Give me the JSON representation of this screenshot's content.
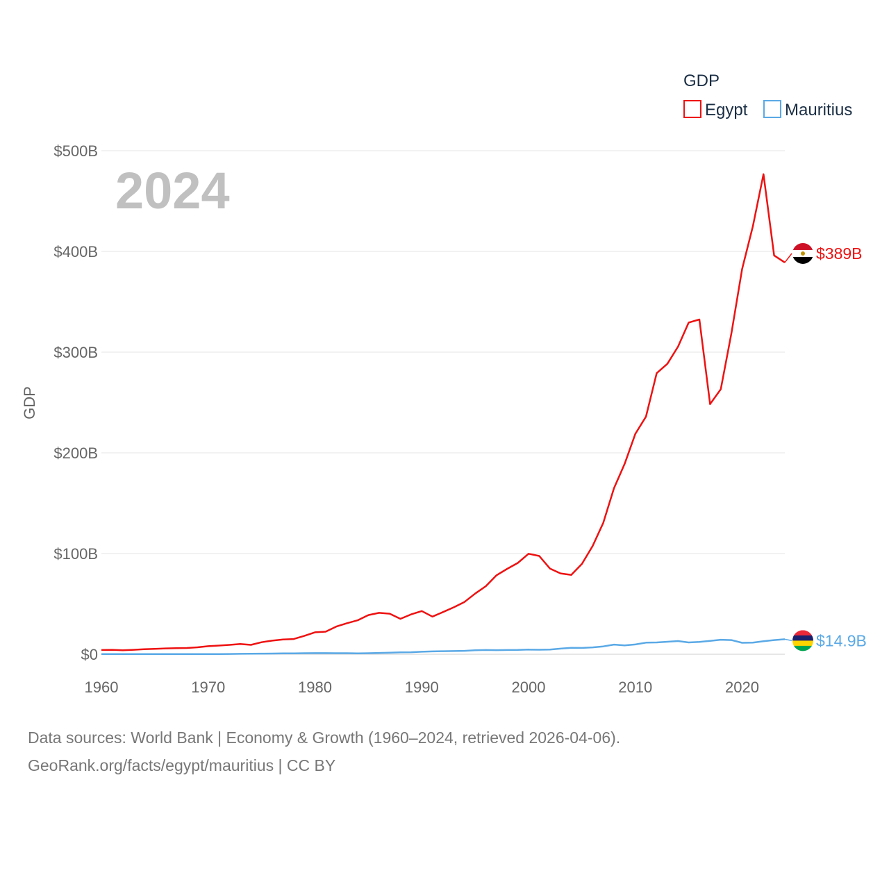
{
  "chart_data": {
    "type": "line",
    "title": "",
    "xlabel": "",
    "ylabel": "GDP",
    "legend_title": "GDP",
    "legend_position": "top-right",
    "current_year_label": "2024",
    "xlim": [
      1960,
      2024
    ],
    "ylim": [
      0,
      500
    ],
    "x_ticks": [
      1960,
      1970,
      1980,
      1990,
      2000,
      2010,
      2020
    ],
    "x_tick_labels": [
      "1960",
      "1970",
      "1980",
      "1990",
      "2000",
      "2010",
      "2020"
    ],
    "y_ticks": [
      0,
      100,
      200,
      300,
      400,
      500
    ],
    "y_tick_labels": [
      "$0",
      "$100B",
      "$200B",
      "$300B",
      "$400B",
      "$500B"
    ],
    "units": "billions of US dollars",
    "series": [
      {
        "name": "Egypt",
        "color": "#ee1111",
        "end_label": "$389B",
        "flag": "egypt-flag",
        "x": [
          1960,
          1961,
          1962,
          1963,
          1964,
          1965,
          1966,
          1967,
          1968,
          1969,
          1970,
          1971,
          1972,
          1973,
          1974,
          1975,
          1976,
          1977,
          1978,
          1979,
          1980,
          1981,
          1982,
          1983,
          1984,
          1985,
          1986,
          1987,
          1988,
          1989,
          1990,
          1991,
          1992,
          1993,
          1994,
          1995,
          1996,
          1997,
          1998,
          1999,
          2000,
          2001,
          2002,
          2003,
          2004,
          2005,
          2006,
          2007,
          2008,
          2009,
          2010,
          2011,
          2012,
          2013,
          2014,
          2015,
          2016,
          2017,
          2018,
          2019,
          2020,
          2021,
          2022,
          2023,
          2024
        ],
        "values": [
          4.2,
          4.4,
          4.0,
          4.4,
          5.0,
          5.4,
          5.8,
          6.0,
          6.2,
          6.9,
          8.0,
          8.6,
          9.3,
          10.2,
          9.3,
          11.9,
          13.5,
          14.6,
          15.1,
          18.2,
          21.8,
          22.4,
          27.5,
          30.8,
          33.7,
          38.9,
          41.1,
          40.3,
          35.2,
          39.6,
          42.9,
          37.4,
          41.9,
          46.6,
          51.9,
          60.2,
          67.6,
          78.4,
          84.8,
          90.7,
          99.8,
          97.6,
          85.1,
          80.3,
          78.8,
          89.7,
          107.5,
          130.5,
          164.8,
          189.1,
          218.9,
          236.0,
          279.1,
          288.4,
          305.5,
          329.4,
          332.4,
          248.4,
          263.2,
          318.7,
          382.5,
          424.7,
          476.7,
          396.0,
          389.0
        ]
      },
      {
        "name": "Mauritius",
        "color": "#5aa9e6",
        "end_label": "$14.9B",
        "flag": "mauritius-flag",
        "x": [
          1960,
          1961,
          1962,
          1963,
          1964,
          1965,
          1966,
          1967,
          1968,
          1969,
          1970,
          1971,
          1972,
          1973,
          1974,
          1975,
          1976,
          1977,
          1978,
          1979,
          1980,
          1981,
          1982,
          1983,
          1984,
          1985,
          1986,
          1987,
          1988,
          1989,
          1990,
          1991,
          1992,
          1993,
          1994,
          1995,
          1996,
          1997,
          1998,
          1999,
          2000,
          2001,
          2002,
          2003,
          2004,
          2005,
          2006,
          2007,
          2008,
          2009,
          2010,
          2011,
          2012,
          2013,
          2014,
          2015,
          2016,
          2017,
          2018,
          2019,
          2020,
          2021,
          2022,
          2023,
          2024
        ],
        "values": [
          0.2,
          0.2,
          0.2,
          0.2,
          0.2,
          0.2,
          0.2,
          0.2,
          0.2,
          0.2,
          0.2,
          0.2,
          0.3,
          0.4,
          0.5,
          0.6,
          0.7,
          0.8,
          0.9,
          1.0,
          1.1,
          1.1,
          1.0,
          1.0,
          0.9,
          1.0,
          1.3,
          1.6,
          1.9,
          2.0,
          2.5,
          2.8,
          3.0,
          3.2,
          3.4,
          3.9,
          4.2,
          4.1,
          4.2,
          4.3,
          4.6,
          4.5,
          4.6,
          5.6,
          6.4,
          6.3,
          6.8,
          7.8,
          9.6,
          8.8,
          9.7,
          11.5,
          11.7,
          12.4,
          13.1,
          11.7,
          12.2,
          13.3,
          14.4,
          14.1,
          11.4,
          11.5,
          12.9,
          14.1,
          14.9
        ]
      }
    ]
  },
  "footer": {
    "line1": "Data sources: World Bank | Economy & Growth (1960–2024, retrieved 2026-04-06).",
    "line2": "GeoRank.org/facts/egypt/mauritius | CC BY"
  }
}
